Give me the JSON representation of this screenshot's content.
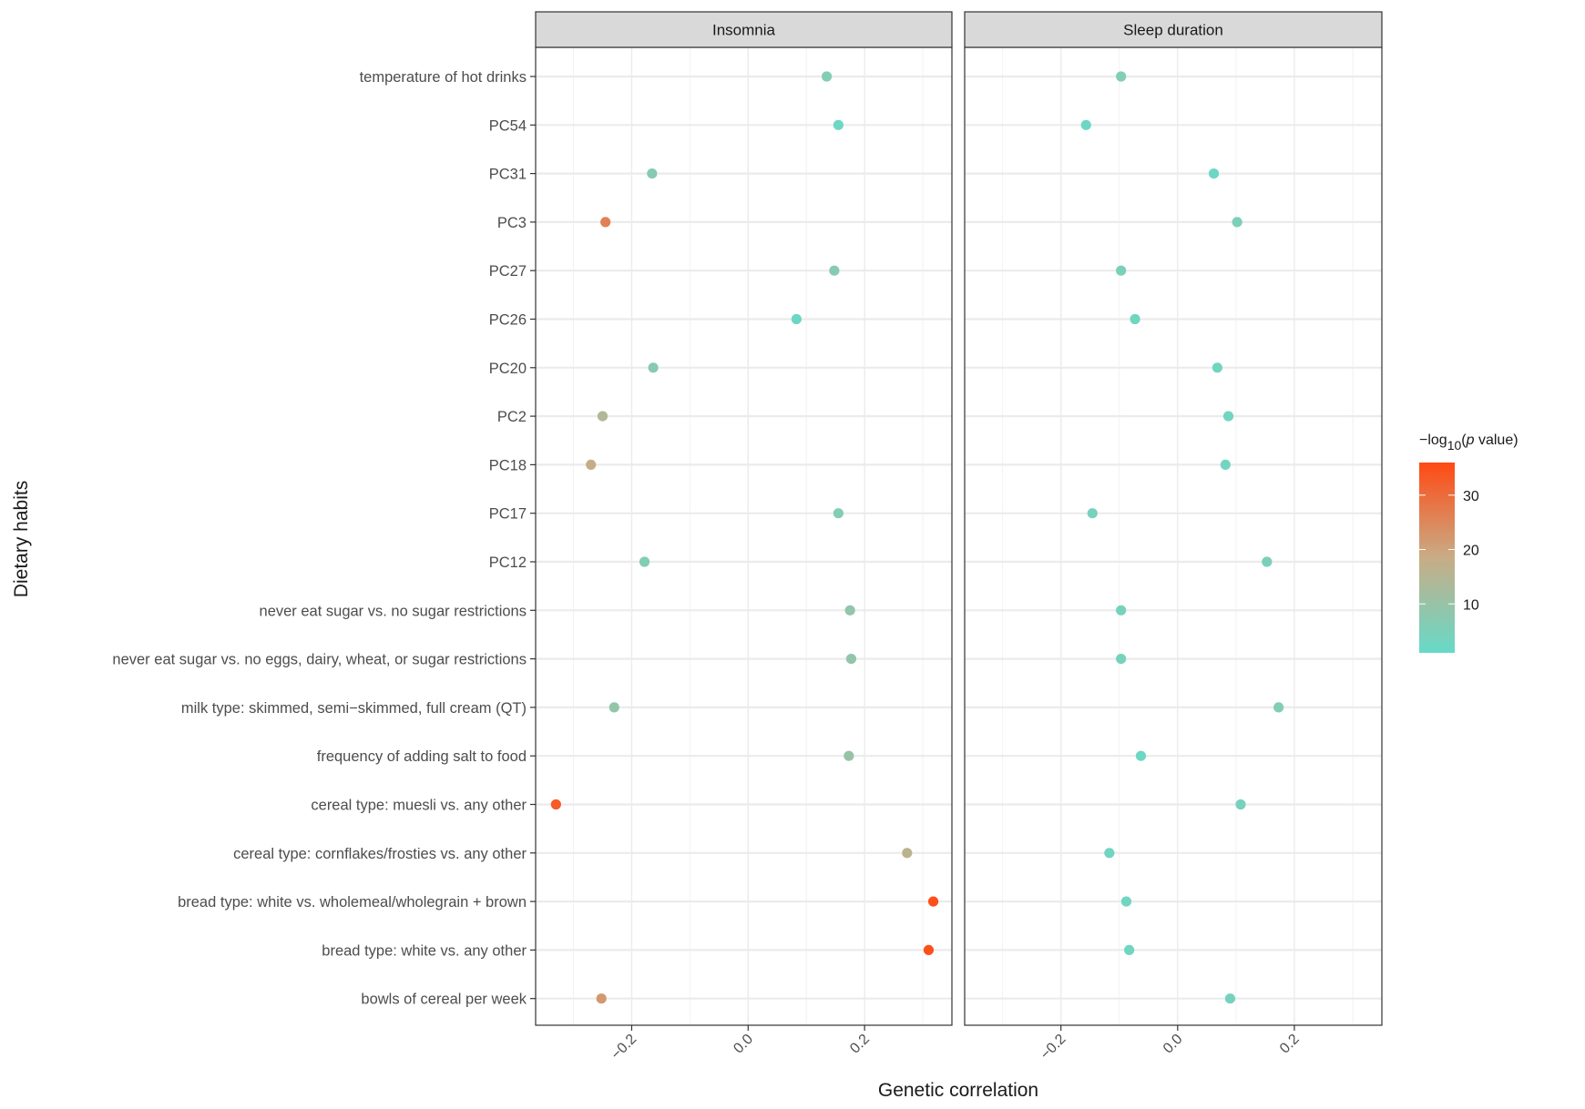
{
  "chart_data": {
    "type": "scatter",
    "xlabel": "Genetic correlation",
    "ylabel": "Dietary habits",
    "xlim": [
      -0.365,
      0.35
    ],
    "x_ticks": [
      -0.2,
      0.0,
      0.2
    ],
    "x_tick_labels": [
      "-0.2",
      "0.0",
      "0.2"
    ],
    "panels": [
      "Insomnia",
      "Sleep duration"
    ],
    "categories": [
      "temperature of hot drinks",
      "PC54",
      "PC31",
      "PC3",
      "PC27",
      "PC26",
      "PC20",
      "PC2",
      "PC18",
      "PC17",
      "PC12",
      "never eat sugar vs. no sugar restrictions",
      "never eat sugar vs. no eggs, dairy, wheat, or sugar restrictions",
      "milk type: skimmed, semi−skimmed, full cream (QT)",
      "frequency of adding salt to food",
      "cereal type: muesli vs. any other",
      "cereal type: cornflakes/frosties vs. any other",
      "bread type: white vs. wholemeal/wholegrain + brown",
      "bread type: white vs. any other",
      "bowls of cereal per week"
    ],
    "series": [
      {
        "name": "Insomnia",
        "x": [
          0.135,
          0.155,
          -0.165,
          -0.245,
          0.148,
          0.083,
          -0.163,
          -0.25,
          -0.27,
          0.155,
          -0.178,
          0.175,
          0.177,
          -0.23,
          0.173,
          -0.33,
          0.273,
          0.318,
          0.31,
          -0.252
        ],
        "neg_log10_p": [
          6,
          2,
          7,
          26,
          7,
          2,
          7,
          14,
          18,
          6,
          6,
          9,
          9,
          9,
          10,
          33,
          16,
          35,
          35,
          22
        ]
      },
      {
        "name": "Sleep duration",
        "x": [
          -0.097,
          -0.157,
          0.062,
          0.102,
          -0.097,
          -0.073,
          0.068,
          0.087,
          0.082,
          -0.146,
          0.153,
          -0.097,
          -0.097,
          0.173,
          -0.063,
          0.108,
          -0.117,
          -0.088,
          -0.083,
          0.09
        ],
        "neg_log10_p": [
          6,
          2,
          2,
          5,
          5,
          3,
          3,
          3,
          3,
          4,
          5,
          4,
          4,
          6,
          2,
          4,
          3,
          3,
          3,
          4
        ]
      }
    ],
    "legend": {
      "title_prefix": "−log",
      "title_subscript": "10",
      "title_open": "(",
      "title_italic": "p",
      "title_rest": " value)",
      "ticks": [
        10,
        20,
        30
      ],
      "range": [
        1,
        36
      ],
      "color_low": "#66dac8",
      "color_mid": "#c8ac86",
      "color_high": "#ff4a14",
      "placement": "right"
    }
  }
}
